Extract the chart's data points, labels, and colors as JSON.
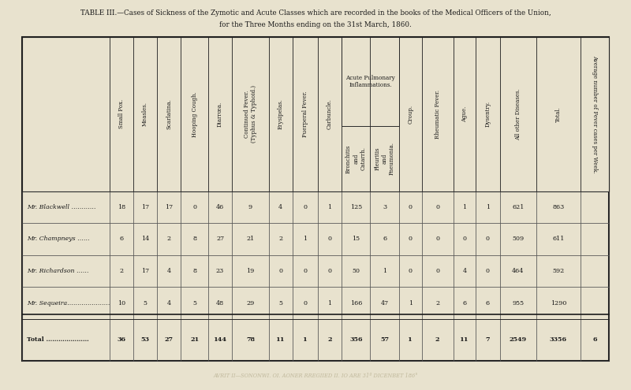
{
  "title_line1": "TABLE III.—Cases of Sickness of the Zymotic and Acute Classes which are recorded in the books of the Medical Officers of the Union,",
  "title_line2": "for the Three Months ending on the 31st March, 1860.",
  "bg_color": "#e8e2ce",
  "col_headers_rotated": [
    "Small Pox.",
    "Measles.",
    "Scarlatina.",
    "Hooping Cough.",
    "Diarrœa.",
    "Continued Fever.\n(Typhus & Typhoid.)",
    "Erysipelas.",
    "Puerperal Fever.",
    "Carbuncle.",
    "Bronchitis\nand\nCatarrh.",
    "Pleuritis\nand\nPneumonia.",
    "Croup.",
    "Rheumatic Fever.",
    "Ague.",
    "Dysentry.",
    "All other Diseases.",
    "Total.",
    "Average number of Fever cases per Week."
  ],
  "acute_pulmonary_label": "Acute Pulmonary\nInflammations.",
  "row_labels": [
    "Mr. Blackwell …………",
    "Mr. Champneys ……",
    "Mr. Richardson ……",
    "Mr. Sequeira…………………",
    "Total …………………"
  ],
  "data": [
    [
      18,
      17,
      17,
      0,
      46,
      9,
      4,
      0,
      1,
      125,
      3,
      0,
      0,
      1,
      1,
      621,
      863
    ],
    [
      6,
      14,
      2,
      8,
      27,
      21,
      2,
      1,
      0,
      15,
      6,
      0,
      0,
      0,
      0,
      509,
      611
    ],
    [
      2,
      17,
      4,
      8,
      23,
      19,
      0,
      0,
      0,
      50,
      1,
      0,
      0,
      4,
      0,
      464,
      592
    ],
    [
      10,
      5,
      4,
      5,
      48,
      29,
      5,
      0,
      1,
      166,
      47,
      1,
      2,
      6,
      6,
      955,
      1290
    ],
    [
      36,
      53,
      27,
      21,
      144,
      78,
      11,
      1,
      2,
      356,
      57,
      1,
      2,
      11,
      7,
      2549,
      3356
    ]
  ],
  "last_col_values": [
    "",
    "",
    "",
    "",
    "6"
  ],
  "footer_text": "AVRIT II—SONONWI. OI. AONER RREGIIED II. IO ARE 31ª DICENBET 186°"
}
